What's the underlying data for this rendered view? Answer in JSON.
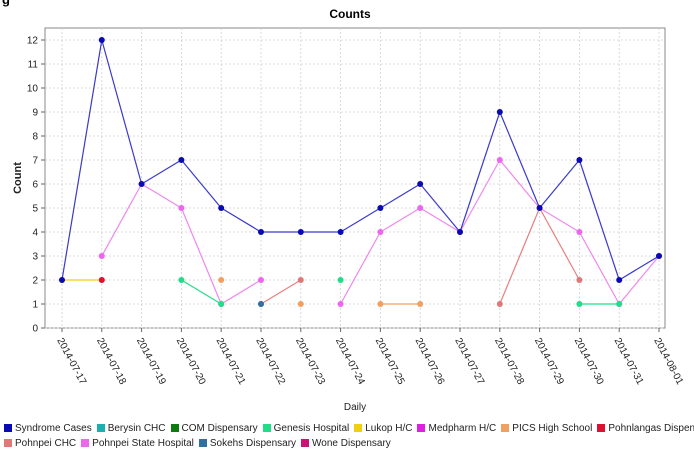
{
  "page": {
    "header_fragment": "g"
  },
  "chart_data": {
    "type": "line",
    "title": "Counts",
    "xlabel": "Daily",
    "ylabel": "Count",
    "ylim": [
      0,
      12.5
    ],
    "yticks": [
      0,
      1,
      2,
      3,
      4,
      5,
      6,
      7,
      8,
      9,
      10,
      11,
      12
    ],
    "categories": [
      "2014-07-17",
      "2014-07-18",
      "2014-07-19",
      "2014-07-20",
      "2014-07-21",
      "2014-07-22",
      "2014-07-23",
      "2014-07-24",
      "2014-07-25",
      "2014-07-26",
      "2014-07-27",
      "2014-07-28",
      "2014-07-29",
      "2014-07-30",
      "2014-07-31",
      "2014-08-01"
    ],
    "grid": true,
    "legend_position": "bottom",
    "series": [
      {
        "name": "Syndrome Cases",
        "color": "#0a0ab4",
        "line": "#3a3acc",
        "values": [
          2,
          12,
          6,
          7,
          5,
          4,
          4,
          4,
          5,
          6,
          4,
          9,
          5,
          7,
          2,
          3
        ]
      },
      {
        "name": "Berysin CHC",
        "color": "#1ab0b0",
        "line": "#1ab0b0",
        "values": [
          null,
          null,
          null,
          null,
          null,
          null,
          null,
          null,
          null,
          null,
          null,
          null,
          null,
          null,
          null,
          null
        ]
      },
      {
        "name": "COM Dispensary",
        "color": "#0f7a0f",
        "line": "#0f7a0f",
        "values": [
          null,
          null,
          null,
          null,
          null,
          null,
          null,
          null,
          null,
          null,
          null,
          null,
          null,
          null,
          null,
          null
        ]
      },
      {
        "name": "Genesis Hospital",
        "color": "#22dd88",
        "line": "#22dd88",
        "values": [
          null,
          null,
          null,
          2,
          1,
          null,
          null,
          2,
          null,
          null,
          null,
          null,
          null,
          1,
          1,
          null
        ]
      },
      {
        "name": "Lukop H/C",
        "color": "#f0d010",
        "line": "#f0d010",
        "values": [
          2,
          2,
          null,
          null,
          null,
          null,
          null,
          null,
          null,
          null,
          null,
          null,
          null,
          null,
          null,
          null
        ]
      },
      {
        "name": "Medpharm H/C",
        "color": "#e020e0",
        "line": "#e020e0",
        "values": [
          null,
          null,
          null,
          null,
          null,
          null,
          null,
          null,
          null,
          null,
          null,
          null,
          null,
          null,
          null,
          null
        ]
      },
      {
        "name": "PICS High School",
        "color": "#f0a060",
        "line": "#f0a060",
        "values": [
          null,
          null,
          null,
          null,
          2,
          null,
          1,
          null,
          1,
          1,
          null,
          null,
          null,
          null,
          null,
          null
        ]
      },
      {
        "name": "Pohnlangas Dispensary",
        "color": "#dd1133",
        "line": "#dd1133",
        "values": [
          null,
          2,
          null,
          null,
          null,
          null,
          null,
          null,
          null,
          null,
          null,
          null,
          null,
          null,
          null,
          null
        ]
      },
      {
        "name": "Pohnpei CHC",
        "color": "#e07878",
        "line": "#e87f7f",
        "values": [
          null,
          null,
          null,
          null,
          null,
          1,
          2,
          null,
          null,
          null,
          null,
          1,
          5,
          2,
          null,
          null
        ]
      },
      {
        "name": "Pohnpei State Hospital",
        "color": "#ee66ee",
        "line": "#ee88ee",
        "values": [
          null,
          3,
          6,
          5,
          1,
          2,
          null,
          1,
          4,
          5,
          4,
          7,
          5,
          4,
          1,
          3
        ]
      },
      {
        "name": "Sokehs Dispensary",
        "color": "#3070a0",
        "line": "#3070a0",
        "values": [
          null,
          null,
          null,
          null,
          null,
          1,
          null,
          null,
          null,
          null,
          null,
          null,
          null,
          null,
          null,
          null
        ]
      },
      {
        "name": "Wone Dispensary",
        "color": "#cc1177",
        "line": "#cc1177",
        "values": [
          null,
          null,
          null,
          null,
          null,
          null,
          null,
          null,
          null,
          null,
          null,
          null,
          null,
          null,
          null,
          null
        ]
      }
    ],
    "legend_rows": [
      [
        0,
        1,
        2,
        3,
        4,
        5,
        6,
        7
      ],
      [
        8,
        9,
        10,
        11
      ]
    ]
  }
}
